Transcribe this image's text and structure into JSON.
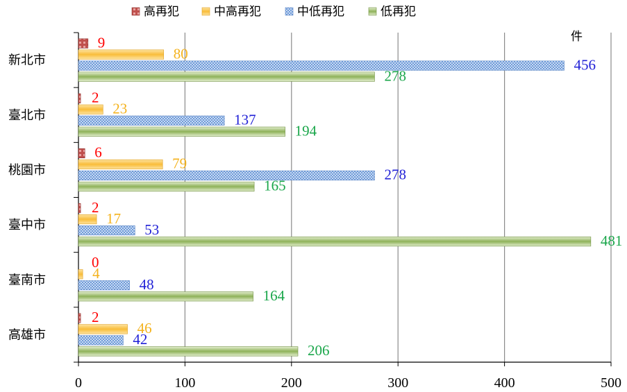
{
  "chart_data": {
    "type": "bar",
    "orientation": "horizontal",
    "unit_label": "件",
    "categories": [
      "新北市",
      "臺北市",
      "桃園市",
      "臺中市",
      "臺南市",
      "高雄市"
    ],
    "series": [
      {
        "name": "高再犯",
        "values": [
          9,
          2,
          6,
          2,
          0,
          2
        ],
        "color": "#c0504d",
        "label_color": "#ff0000"
      },
      {
        "name": "中高再犯",
        "values": [
          80,
          23,
          79,
          17,
          4,
          46
        ],
        "color": "#fac247",
        "label_color": "#f4b21c"
      },
      {
        "name": "中低再犯",
        "values": [
          456,
          137,
          278,
          53,
          48,
          42
        ],
        "color": "#6f9bd8",
        "label_color": "#1f1fd6"
      },
      {
        "name": "低再犯",
        "values": [
          278,
          194,
          165,
          481,
          164,
          206
        ],
        "color": "#8fb25a",
        "label_color": "#1aa64a"
      }
    ],
    "xlim": [
      0,
      500
    ],
    "x_ticks": [
      0,
      100,
      200,
      300,
      400,
      500
    ],
    "grid": true,
    "legend_position": "top"
  }
}
